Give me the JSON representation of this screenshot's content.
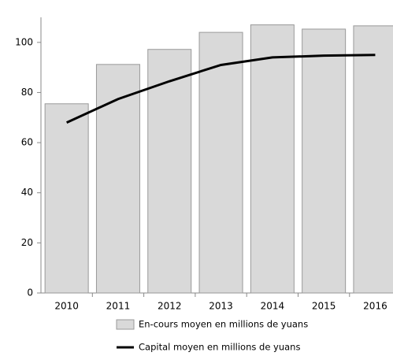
{
  "chart_data": {
    "type": "bar",
    "categories": [
      "2010",
      "2011",
      "2012",
      "2013",
      "2014",
      "2015",
      "2016"
    ],
    "series": [
      {
        "name": "En-cours moyen en millions de yuans",
        "type": "bar",
        "color": "#d9d9d9",
        "values": [
          75.5,
          91.2,
          97.2,
          104,
          107,
          105.3,
          106.6
        ]
      },
      {
        "name": "Capital moyen en millions de yuans",
        "type": "line",
        "color": "#000000",
        "values": [
          68,
          77.4,
          84.5,
          91,
          94,
          94.7,
          95
        ]
      }
    ],
    "ylim": [
      0,
      110
    ],
    "yticks": [
      0,
      20,
      40,
      60,
      80,
      100
    ],
    "grid": false
  }
}
